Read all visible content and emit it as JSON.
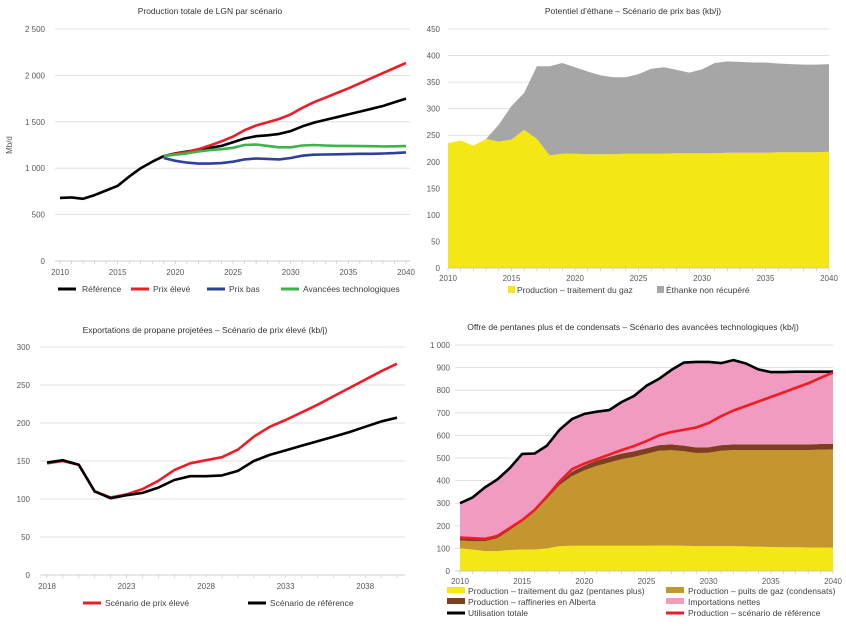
{
  "chart_data": [
    {
      "type": "line",
      "title": "Production totale de LGN par scénario",
      "ylabel": "Mb/d",
      "xlabel": "",
      "ylim": [
        0,
        2500
      ],
      "yticks": [
        "0",
        "500",
        "1 000",
        "1 500",
        "2 000",
        "2 500"
      ],
      "ytick_values": [
        0,
        500,
        1000,
        1500,
        2000,
        2500
      ],
      "xticks": [
        "2010",
        "2015",
        "2020",
        "2025",
        "2030",
        "2035",
        "2040"
      ],
      "xlim": [
        2010,
        2040
      ],
      "grid": true,
      "legend_position": "bottom",
      "series": [
        {
          "name": "Référence",
          "color": "#000000",
          "x_start": 2010,
          "values": [
            680,
            685,
            670,
            710,
            760,
            810,
            910,
            1000,
            1070,
            1130,
            1160,
            1180,
            1200,
            1220,
            1240,
            1280,
            1320,
            1345,
            1355,
            1370,
            1400,
            1450,
            1490,
            1520,
            1550,
            1580,
            1610,
            1640,
            1670,
            1710,
            1750
          ]
        },
        {
          "name": "Prix élevé",
          "color": "#ee1c25",
          "x_start": 2019,
          "values": [
            1130,
            1155,
            1175,
            1205,
            1245,
            1290,
            1340,
            1410,
            1460,
            1495,
            1530,
            1580,
            1650,
            1710,
            1760,
            1810,
            1860,
            1915,
            1970,
            2025,
            2080,
            2135
          ]
        },
        {
          "name": "Prix bas",
          "color": "#2e3f9e",
          "x_start": 2019,
          "values": [
            1110,
            1080,
            1060,
            1050,
            1050,
            1055,
            1070,
            1095,
            1105,
            1100,
            1095,
            1110,
            1135,
            1145,
            1148,
            1150,
            1152,
            1155,
            1155,
            1158,
            1163,
            1170
          ]
        },
        {
          "name": "Avancées technologiques",
          "color": "#3cb44b",
          "x_start": 2019,
          "values": [
            1130,
            1145,
            1160,
            1180,
            1195,
            1205,
            1220,
            1250,
            1255,
            1240,
            1225,
            1225,
            1245,
            1250,
            1245,
            1240,
            1240,
            1238,
            1237,
            1235,
            1236,
            1238
          ]
        }
      ]
    },
    {
      "type": "area",
      "stacked": true,
      "title": "Potentiel d’éthane – Scénario de prix bas (kb/j)",
      "ylim": [
        0,
        450
      ],
      "yticks": [
        "0",
        "50",
        "100",
        "150",
        "200",
        "250",
        "300",
        "350",
        "400",
        "450"
      ],
      "ytick_values": [
        0,
        50,
        100,
        150,
        200,
        250,
        300,
        350,
        400,
        450
      ],
      "xticks": [
        "2010",
        "2015",
        "2020",
        "2025",
        "2030",
        "2035",
        "2040"
      ],
      "xlim": [
        2010,
        2040
      ],
      "grid": true,
      "legend_position": "bottom",
      "x_start": 2010,
      "series": [
        {
          "name": "Production – traitement du gaz",
          "color": "#f5e616",
          "values": [
            235,
            240,
            230,
            243,
            238,
            242,
            260,
            243,
            212,
            215,
            215,
            214,
            214,
            214,
            215,
            215,
            215,
            215,
            216,
            216,
            216,
            216,
            217,
            217,
            217,
            217,
            218,
            218,
            218,
            218,
            219
          ]
        },
        {
          "name": "Éthanke non récupéré",
          "color": "#a6a6a6",
          "values": [
            0,
            0,
            0,
            0,
            32,
            63,
            70,
            137,
            168,
            171,
            163,
            156,
            149,
            145,
            144,
            150,
            160,
            163,
            157,
            152,
            158,
            170,
            172,
            171,
            170,
            170,
            167,
            166,
            165,
            165,
            165
          ]
        }
      ]
    },
    {
      "type": "line",
      "title": "Exportations de propane projetées – Scénario de prix élevé (kb/j)",
      "ylim": [
        0,
        300
      ],
      "yticks": [
        "0",
        "50",
        "100",
        "150",
        "200",
        "250",
        "300"
      ],
      "ytick_values": [
        0,
        50,
        100,
        150,
        200,
        250,
        300
      ],
      "xticks": [
        "2018",
        "2023",
        "2028",
        "2033",
        "2038"
      ],
      "xlim": [
        2018,
        2040
      ],
      "grid": true,
      "legend_position": "bottom",
      "series": [
        {
          "name": "Scénario de prix élevé",
          "color": "#ee1c25",
          "x_start": 2018,
          "values": [
            147,
            150,
            145,
            110,
            102,
            106,
            113,
            124,
            138,
            147,
            151,
            155,
            165,
            182,
            195,
            204,
            214,
            224,
            235,
            246,
            257,
            268,
            278
          ]
        },
        {
          "name": "Scénario de référence",
          "color": "#000000",
          "x_start": 2018,
          "values": [
            148,
            151,
            145,
            110,
            101,
            105,
            108,
            115,
            125,
            130,
            130,
            131,
            137,
            150,
            158,
            164,
            170,
            176,
            182,
            188,
            195,
            202,
            207
          ]
        }
      ]
    },
    {
      "type": "area",
      "stacked": true,
      "title": "Offre de pentanes plus et de condensats – Scénario des avancées technologiques (kb/j)",
      "ylim": [
        0,
        1000
      ],
      "yticks": [
        "0",
        "100",
        "200",
        "300",
        "400",
        "500",
        "600",
        "700",
        "800",
        "900",
        "1 000"
      ],
      "ytick_values": [
        0,
        100,
        200,
        300,
        400,
        500,
        600,
        700,
        800,
        900,
        1000
      ],
      "xticks": [
        "2010",
        "2015",
        "2020",
        "2025",
        "2030",
        "2035",
        "2040"
      ],
      "xlim": [
        2010,
        2040
      ],
      "grid": true,
      "legend_position": "bottom",
      "x_start": 2010,
      "series": [
        {
          "name": "Production – traitement du gaz (pentanes plus)",
          "color": "#f5e616",
          "values": [
            100,
            95,
            88,
            88,
            93,
            95,
            95,
            100,
            110,
            112,
            112,
            112,
            112,
            112,
            112,
            112,
            113,
            113,
            112,
            110,
            110,
            110,
            110,
            109,
            108,
            106,
            105,
            105,
            104,
            104,
            103
          ]
        },
        {
          "name": "Production – puits de gaz (condensats)",
          "color": "#c4962f",
          "values": [
            35,
            37,
            44,
            57,
            87,
            125,
            170,
            220,
            270,
            308,
            333,
            353,
            368,
            383,
            393,
            406,
            419,
            422,
            418,
            412,
            413,
            422,
            425,
            426,
            427,
            429,
            430,
            430,
            431,
            433,
            435
          ]
        },
        {
          "name": "Production – raffineries en Alberta",
          "color": "#7f3f1f",
          "values": [
            10,
            10,
            10,
            10,
            10,
            10,
            10,
            10,
            10,
            20,
            22,
            24,
            25,
            25,
            25,
            25,
            25,
            25,
            25,
            25,
            25,
            25,
            25,
            25,
            25,
            25,
            25,
            25,
            25,
            25,
            25
          ]
        },
        {
          "name": "Importations nettes",
          "color": "#f29bc1",
          "values": [
            155,
            183,
            228,
            250,
            265,
            288,
            245,
            225,
            235,
            232,
            228,
            216,
            207,
            228,
            245,
            277,
            293,
            330,
            367,
            378,
            377,
            363,
            373,
            358,
            332,
            320,
            320,
            322,
            322,
            320,
            319
          ]
        }
      ],
      "lines": [
        {
          "name": "Utilisation totale",
          "color": "#000000",
          "values": [
            300,
            325,
            370,
            405,
            455,
            518,
            520,
            555,
            625,
            672,
            695,
            705,
            712,
            748,
            775,
            820,
            850,
            890,
            922,
            925,
            925,
            920,
            933,
            918,
            892,
            880,
            880,
            882,
            882,
            882,
            882
          ]
        },
        {
          "name": "Production – scénario de référence",
          "color": "#ee1c25",
          "values": [
            148,
            145,
            142,
            155,
            190,
            225,
            270,
            330,
            395,
            450,
            475,
            495,
            515,
            535,
            553,
            575,
            600,
            615,
            625,
            635,
            655,
            685,
            710,
            730,
            750,
            770,
            790,
            810,
            830,
            855,
            878
          ]
        }
      ]
    }
  ]
}
